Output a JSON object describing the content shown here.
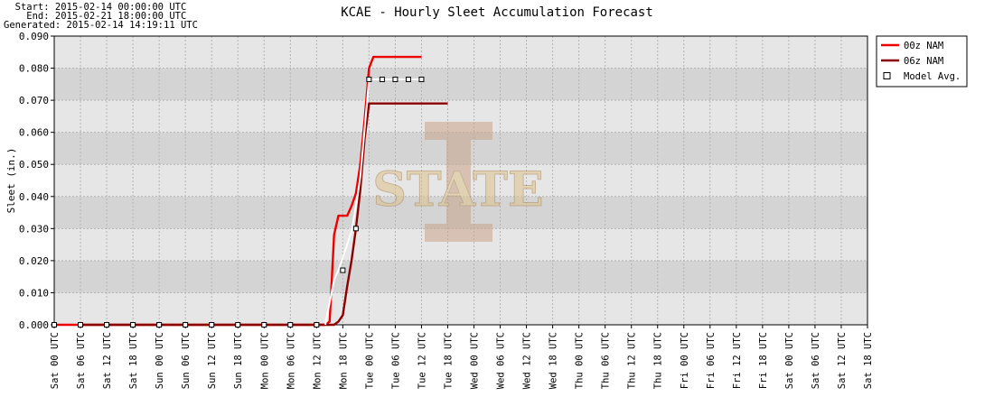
{
  "header": {
    "start": "  Start: 2015-02-14 00:00:00 UTC",
    "end": "    End: 2015-02-21 18:00:00 UTC",
    "generated": "Generated: 2015-02-14 14:19:11 UTC"
  },
  "chart_data": {
    "type": "line",
    "title": "KCAE - Hourly Sleet Accumulation Forecast",
    "xlabel": "",
    "ylabel": "Sleet (in.)",
    "ylim": [
      0,
      0.09
    ],
    "yticks": [
      "0.000",
      "0.010",
      "0.020",
      "0.030",
      "0.040",
      "0.050",
      "0.060",
      "0.070",
      "0.080",
      "0.090"
    ],
    "x_unit": "hours since 2015-02-14 00 UTC",
    "xlim": [
      0,
      186
    ],
    "xticks": [
      "Sat 00 UTC",
      "Sat 06 UTC",
      "Sat 12 UTC",
      "Sat 18 UTC",
      "Sun 00 UTC",
      "Sun 06 UTC",
      "Sun 12 UTC",
      "Sun 18 UTC",
      "Mon 00 UTC",
      "Mon 06 UTC",
      "Mon 12 UTC",
      "Mon 18 UTC",
      "Tue 00 UTC",
      "Tue 06 UTC",
      "Tue 12 UTC",
      "Tue 18 UTC",
      "Wed 00 UTC",
      "Wed 06 UTC",
      "Wed 12 UTC",
      "Wed 18 UTC",
      "Thu 00 UTC",
      "Thu 06 UTC",
      "Thu 12 UTC",
      "Thu 18 UTC",
      "Fri 00 UTC",
      "Fri 06 UTC",
      "Fri 12 UTC",
      "Fri 18 UTC",
      "Sat 00 UTC",
      "Sat 06 UTC",
      "Sat 12 UTC",
      "Sat 18 UTC"
    ],
    "grid": true,
    "legend_position": "right",
    "colors": {
      "band_light": "#e6e6e6",
      "band_dark": "#d4d4d4",
      "grid": "#b4b4b4",
      "series_00z": "#ee0000",
      "series_06z": "#8b0000",
      "avg_line": "#ffffff",
      "watermark": "#c9a38a"
    },
    "series": [
      {
        "name": "00z NAM",
        "color": "#ee0000",
        "points": [
          [
            0,
            0
          ],
          [
            6,
            0
          ],
          [
            62,
            0
          ],
          [
            63,
            0.001
          ],
          [
            64,
            0.028
          ],
          [
            65,
            0.034
          ],
          [
            66,
            0.034
          ],
          [
            67,
            0.034
          ],
          [
            68,
            0.037
          ],
          [
            69,
            0.041
          ],
          [
            70,
            0.05
          ],
          [
            71,
            0.064
          ],
          [
            72,
            0.08
          ],
          [
            73,
            0.0835
          ],
          [
            74,
            0.0835
          ],
          [
            80,
            0.0835
          ],
          [
            84,
            0.0835
          ]
        ]
      },
      {
        "name": "06z NAM",
        "color": "#8b0000",
        "points": [
          [
            6,
            0
          ],
          [
            64,
            0
          ],
          [
            65,
            0.001
          ],
          [
            66,
            0.003
          ],
          [
            67,
            0.012
          ],
          [
            68,
            0.02
          ],
          [
            69,
            0.03
          ],
          [
            70,
            0.042
          ],
          [
            71,
            0.058
          ],
          [
            72,
            0.069
          ],
          [
            80,
            0.069
          ],
          [
            90,
            0.069
          ]
        ]
      }
    ],
    "model_avg": {
      "name": "Model Avg.",
      "line_points": [
        [
          62,
          0
        ],
        [
          64,
          0.014
        ],
        [
          65,
          0.017
        ],
        [
          66,
          0.021
        ],
        [
          67,
          0.025
        ],
        [
          68,
          0.029
        ],
        [
          69,
          0.037
        ],
        [
          70,
          0.046
        ],
        [
          71,
          0.061
        ],
        [
          72,
          0.0765
        ],
        [
          84,
          0.0765
        ]
      ],
      "markers": [
        [
          0,
          0
        ],
        [
          6,
          0
        ],
        [
          12,
          0
        ],
        [
          18,
          0
        ],
        [
          24,
          0
        ],
        [
          30,
          0
        ],
        [
          36,
          0
        ],
        [
          42,
          0
        ],
        [
          48,
          0
        ],
        [
          54,
          0
        ],
        [
          60,
          0
        ],
        [
          66,
          0.017
        ],
        [
          69,
          0.03
        ],
        [
          72,
          0.0765
        ],
        [
          75,
          0.0765
        ],
        [
          78,
          0.0765
        ],
        [
          81,
          0.0765
        ],
        [
          84,
          0.0765
        ]
      ]
    }
  }
}
